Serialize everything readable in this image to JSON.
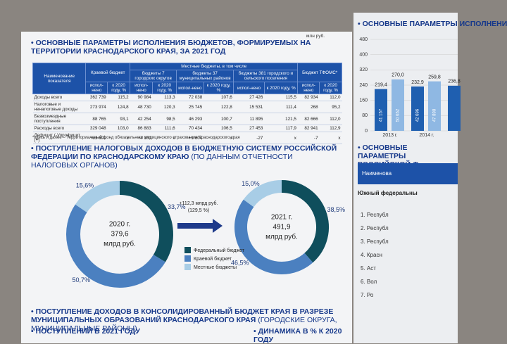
{
  "left_page": {
    "table_title": "ОСНОВНЫЕ ПАРАМЕТРЫ ИСПОЛНЕНИЯ БЮДЖЕТОВ, ФОРМИРУЕМЫХ НА ТЕРРИТОРИИ КРАСНОДАРСКОГО КРАЯ, ЗА 2021 ГОД",
    "units": "млн руб.",
    "table": {
      "first_header": "Наименование показателя",
      "groups": [
        "Краевой бюджет",
        "Местные бюджеты, в том числе",
        "Бюджет ТФОМС*"
      ],
      "local_columns": [
        "бюджеты 7 городских округов",
        "бюджеты 37 муниципальных районов",
        "бюджеты 381 городского и сельского поселения"
      ],
      "subheader": [
        "испол-нено",
        "к 2020 году, %"
      ],
      "rows": [
        [
          "Доходы всего",
          "362 739",
          "115,2",
          "90 984",
          "113,3",
          "72 038",
          "107,6",
          "27 426",
          "115,5",
          "82 934",
          "112,0"
        ],
        [
          "Налоговые и неналоговые доходы",
          "273 974",
          "124,8",
          "48 730",
          "120,3",
          "25 745",
          "122,8",
          "15 531",
          "111,4",
          "268",
          "95,2"
        ],
        [
          "Безвозмездные поступления",
          "88 765",
          "93,1",
          "42 254",
          "98,5",
          "46 293",
          "100,7",
          "11 895",
          "121,5",
          "82 666",
          "112,0"
        ],
        [
          "Расходы всего",
          "329 048",
          "103,0",
          "86 883",
          "111,6",
          "70 434",
          "106,5",
          "27 453",
          "117,9",
          "82 941",
          "112,9"
        ],
        [
          "Дефицит (-)/профицит (+)",
          "+33 691",
          "x",
          "+4 101",
          "x",
          "+1 604",
          "x",
          "-27",
          "x",
          "-7",
          "x"
        ]
      ]
    },
    "footnote": "*здесь и далее – Территориальный фонд обязательного медицинского страхования Краснодарского края",
    "donut_section": {
      "title": "ПОСТУПЛЕНИЕ НАЛОГОВЫХ ДОХОДОВ В БЮДЖЕТНУЮ СИСТЕМУ РОССИЙСКОЙ ФЕДЕРАЦИИ ПО КРАСНОДАРСКОМУ КРАЮ",
      "subtitle": "(ПО ДАННЫМ ОТЧЕТНОСТИ НАЛОГОВЫХ ОРГАНОВ)",
      "legend": [
        {
          "name": "Федеральный бюджет",
          "color": "#0f4e5c"
        },
        {
          "name": "Краевой бюджет",
          "color": "#4b80c0"
        },
        {
          "name": "Местные бюджеты",
          "color": "#a8cde6"
        }
      ],
      "charts": [
        {
          "year": "2020 г.",
          "total": "379,6",
          "unit": "млрд руб.",
          "segments": [
            {
              "value": 33.7,
              "label": "33,7%"
            },
            {
              "value": 50.7,
              "label": "50,7%"
            },
            {
              "value": 15.6,
              "label": "15,6%"
            }
          ]
        },
        {
          "year": "2021 г.",
          "total": "491,9",
          "unit": "млрд руб.",
          "segments": [
            {
              "value": 38.5,
              "label": "38,5%"
            },
            {
              "value": 46.5,
              "label": "46,5%"
            },
            {
              "value": 15.0,
              "label": "15,0%"
            }
          ]
        }
      ],
      "change": [
        "+112,3 млрд руб.",
        "(129,5 %)"
      ]
    },
    "bottom": {
      "title": "ПОСТУПЛЕНИЕ ДОХОДОВ В КОНСОЛИДИРОВАННЫЙ БЮДЖЕТ КРАЯ В РАЗРЕЗЕ МУНИЦИПАЛЬНЫХ ОБРАЗОВАНИЙ КРАСНОДАРСКОГО КРАЯ",
      "subtitle": "(ГОРОДСКИЕ ОКРУГА, МУНИЦИПАЛЬНЫЕ РАЙОНЫ)",
      "left_caption": "ПОСТУПЛЕНИЙ В 2021 ГОДУ",
      "right_caption": "ДИНАМИКА В % К 2020 ГОДУ"
    }
  },
  "right_page": {
    "top_title": "ОСНОВНЫЕ ПАРАМЕТРЫ ИСПОЛНЕНИ",
    "chart": {
      "values": [
        {
          "value": 219.4,
          "label": "219,4"
        },
        {
          "value": 270.0,
          "label": "270,0"
        },
        {
          "value": 232.9,
          "label": "232,9"
        },
        {
          "value": 259.8,
          "label": "259,8"
        },
        {
          "value": 236.8,
          "label": "236,8"
        }
      ],
      "inner_labels": [
        "41 157",
        "50 652",
        "42 696",
        "47 898",
        null
      ],
      "colors": [
        "#1f5fb0",
        "#8fb8e3"
      ],
      "categories": [
        "2013 г.",
        "2014 г."
      ],
      "ylim": [
        0,
        480
      ],
      "yticks": [
        0,
        80,
        160,
        240,
        320,
        400,
        480
      ]
    },
    "second_title": "ОСНОВНЫЕ ПАРАМЕТРЫ РОССИЙСКОЙ Ф",
    "table_header": "Наименова",
    "region_header": "Южный федеральны",
    "items": [
      "1. Республ",
      "2. Республ",
      "3. Республ",
      "4. Красн",
      "5. Аст",
      "6. Вол",
      "7. Ро"
    ]
  }
}
